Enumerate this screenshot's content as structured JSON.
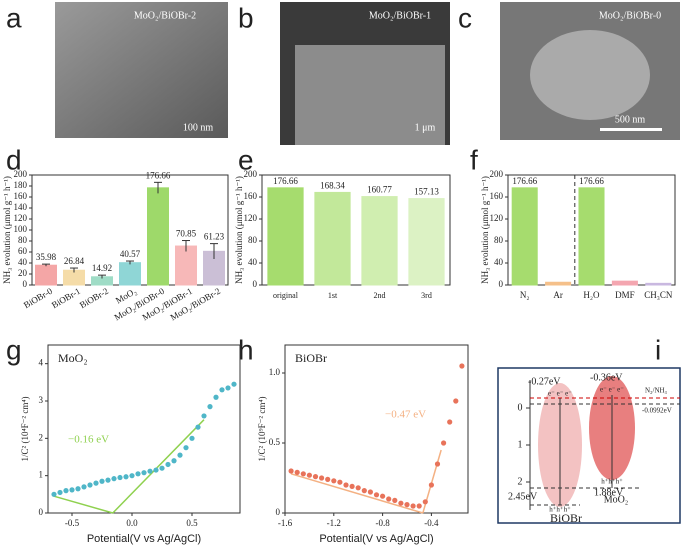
{
  "panels": {
    "labels": [
      "a",
      "b",
      "c",
      "d",
      "e",
      "f",
      "g",
      "h",
      "i"
    ]
  },
  "images": [
    {
      "caption": "MoO₂/BiOBr-2",
      "scale": "100 nm"
    },
    {
      "caption": "MoO₂/BiOBr-1",
      "scale": "1 μm"
    },
    {
      "caption": "MoO₂/BiOBr-0",
      "scale": "500 nm"
    }
  ],
  "chart_data": [
    {
      "type": "bar",
      "ylabel": "NH₃ evolution (μmol g⁻¹ h⁻¹)",
      "categories": [
        "BiOBr-0",
        "BiOBr-1",
        "BiOBr-2",
        "MoO₂",
        "MoO₂/BiOBr-0",
        "MoO₂/BiOBr-1",
        "MoO₂/BiOBr-2"
      ],
      "values": [
        35.98,
        26.84,
        14.92,
        40.57,
        176.66,
        70.85,
        61.23
      ],
      "errors": [
        2,
        4,
        3,
        3,
        10,
        10,
        14
      ],
      "colors": [
        "#f4a6a6",
        "#f5dca8",
        "#9fdcc6",
        "#8fd6d6",
        "#9ed96a",
        "#f7b8b8",
        "#cbbfd6"
      ],
      "ylim": [
        0,
        200
      ],
      "yticks": [
        0,
        20,
        40,
        60,
        80,
        100,
        120,
        140,
        160,
        180,
        200
      ]
    },
    {
      "type": "bar",
      "ylabel": "NH₃ evolution (μmol g⁻¹ h⁻¹)",
      "categories": [
        "original",
        "1st",
        "2nd",
        "3rd"
      ],
      "values": [
        176.66,
        168.34,
        160.77,
        157.13
      ],
      "colors": [
        "#a6dc6e",
        "#c2e89a",
        "#d0eeb0",
        "#dcf2c4"
      ],
      "ylim": [
        0,
        200
      ],
      "yticks": [
        0,
        40,
        80,
        120,
        160,
        200
      ]
    },
    {
      "type": "bar",
      "ylabel": "NH₃ evolution (μmol g⁻¹ h⁻¹)",
      "categories": [
        "N₂",
        "Ar",
        "H₂O",
        "DMF",
        "CH₃CN"
      ],
      "values": [
        176.66,
        5,
        176.66,
        7,
        3
      ],
      "value_labels": [
        "176.66",
        null,
        "176.66",
        null,
        null
      ],
      "colors": [
        "#a6dc6e",
        "#f5c08a",
        "#a6dc6e",
        "#f4a6b0",
        "#c9b8e0"
      ],
      "ylim": [
        0,
        200
      ],
      "yticks": [
        0,
        40,
        80,
        120,
        160,
        200
      ]
    },
    {
      "type": "scatter",
      "title": "MoO₂",
      "annotation": "−0.16 eV",
      "xlabel": "Potential(V vs Ag/AgCl)",
      "ylabel": "1/C² (10⁴F⁻² cm⁴)",
      "color": "#4fb6c8",
      "fit_color": "#8fd14f",
      "x": [
        -0.65,
        -0.6,
        -0.55,
        -0.5,
        -0.45,
        -0.4,
        -0.35,
        -0.3,
        -0.25,
        -0.2,
        -0.15,
        -0.1,
        -0.05,
        0,
        0.05,
        0.1,
        0.15,
        0.2,
        0.25,
        0.3,
        0.35,
        0.4,
        0.45,
        0.5,
        0.55,
        0.6,
        0.65,
        0.7,
        0.75,
        0.8,
        0.85
      ],
      "values": [
        0.5,
        0.55,
        0.6,
        0.62,
        0.65,
        0.7,
        0.75,
        0.8,
        0.85,
        0.88,
        0.92,
        0.95,
        0.97,
        1.0,
        1.05,
        1.08,
        1.12,
        1.15,
        1.2,
        1.3,
        1.4,
        1.55,
        1.75,
        2.0,
        2.3,
        2.6,
        2.85,
        3.1,
        3.3,
        3.35,
        3.45
      ],
      "fit_lines": [
        {
          "x": [
            -0.65,
            -0.16
          ],
          "y": [
            0.45,
            0
          ]
        },
        {
          "x": [
            -0.16,
            0.6
          ],
          "y": [
            0,
            2.5
          ]
        }
      ],
      "xlim": [
        -0.7,
        0.9
      ],
      "ylim": [
        0,
        4.5
      ],
      "xticks": [
        -0.5,
        {
          "value": 0,
          "label": "0.0"
        },
        0.5
      ],
      "yticks": [
        0,
        1,
        2,
        3,
        4
      ]
    },
    {
      "type": "scatter",
      "title": "BiOBr",
      "annotation": "−0.47 eV",
      "xlabel": "Potential(V vs Ag/AgCl)",
      "ylabel": "1/C² (10⁹F⁻² cm⁴)",
      "color": "#e8735a",
      "fit_color": "#f4b183",
      "x": [
        -1.55,
        -1.5,
        -1.45,
        -1.4,
        -1.35,
        -1.3,
        -1.25,
        -1.2,
        -1.15,
        -1.1,
        -1.05,
        -1.0,
        -0.95,
        -0.9,
        -0.85,
        -0.8,
        -0.75,
        -0.7,
        -0.65,
        -0.6,
        -0.55,
        -0.5,
        -0.45,
        -0.4,
        -0.35,
        -0.3,
        -0.25,
        -0.2,
        -0.15
      ],
      "values": [
        0.3,
        0.29,
        0.28,
        0.27,
        0.26,
        0.25,
        0.24,
        0.23,
        0.22,
        0.2,
        0.19,
        0.18,
        0.16,
        0.15,
        0.13,
        0.12,
        0.1,
        0.09,
        0.07,
        0.06,
        0.05,
        0.05,
        0.08,
        0.2,
        0.35,
        0.5,
        0.65,
        0.8,
        1.05
      ],
      "fit_lines": [
        {
          "x": [
            -1.55,
            -0.47
          ],
          "y": [
            0.28,
            0
          ]
        },
        {
          "x": [
            -0.47,
            -0.32
          ],
          "y": [
            0,
            0.45
          ]
        }
      ],
      "xlim": [
        -1.6,
        -0.1
      ],
      "ylim": [
        0,
        1.2
      ],
      "xticks": [
        -1.6,
        -1.2,
        -0.8,
        -0.4
      ],
      "yticks": [
        0,
        0.5,
        {
          "value": 1,
          "label": "1.0"
        }
      ]
    }
  ],
  "band_diagram": {
    "ticks": [
      "0",
      "1",
      "2"
    ],
    "cb_biobr": "-0.27eV",
    "cb_moo2": "-0.36eV",
    "redox": "N₂/NH₃",
    "redox_value": "-0.0992eV",
    "vb_biobr": "2.45eV",
    "vb_moo2": "1.88eV",
    "electrons": "e⁻ e⁻ e⁻",
    "holes": "h⁺h⁺h⁺",
    "name_biobr": "BiOBr",
    "name_moo2": "MoO₂"
  }
}
